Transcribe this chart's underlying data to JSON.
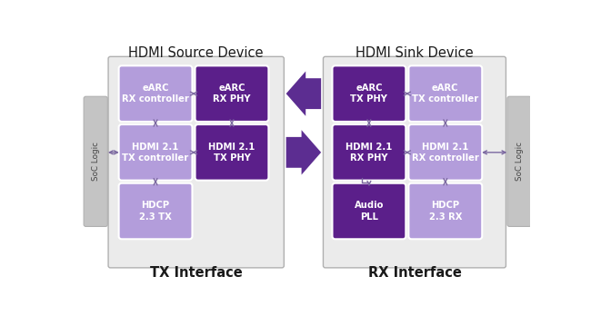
{
  "fig_width": 6.5,
  "fig_height": 3.59,
  "dpi": 100,
  "bg_color": "#ffffff",
  "title_fontsize": 10.5,
  "label_fontsize": 7.2,
  "small_label_fontsize": 6.3,
  "light_purple": "#b39ddb",
  "dark_purple": "#5b1f8a",
  "med_purple": "#7e57c2",
  "arrow_color": "#5c2d91",
  "connector_color": "#7b68a0",
  "gray_bg": "#ebebeb",
  "gray_border": "#b0b0b0",
  "soc_gray": "#c4c4c4",
  "white": "#ffffff",
  "source_title": "HDMI Source Device",
  "sink_title": "HDMI Sink Device",
  "tx_label": "TX Interface",
  "rx_label": "RX Interface",
  "soc_label": "SoC Logic",
  "source_blocks": [
    {
      "label": "eARC\nRX controller",
      "color": "#b39ddb",
      "col": 0,
      "row": 0
    },
    {
      "label": "eARC\nRX PHY",
      "color": "#5b1f8a",
      "col": 1,
      "row": 0
    },
    {
      "label": "HDMI 2.1\nTX controller",
      "color": "#b39ddb",
      "col": 0,
      "row": 1
    },
    {
      "label": "HDMI 2.1\nTX PHY",
      "color": "#5b1f8a",
      "col": 1,
      "row": 1
    },
    {
      "label": "HDCP\n2.3 TX",
      "color": "#b39ddb",
      "col": 0,
      "row": 2
    }
  ],
  "sink_blocks": [
    {
      "label": "eARC\nTX PHY",
      "color": "#5b1f8a",
      "col": 0,
      "row": 0
    },
    {
      "label": "eARC\nTX controller",
      "color": "#b39ddb",
      "col": 1,
      "row": 0
    },
    {
      "label": "HDMI 2.1\nRX PHY",
      "color": "#5b1f8a",
      "col": 0,
      "row": 1
    },
    {
      "label": "HDMI 2.1\nRX controller",
      "color": "#b39ddb",
      "col": 1,
      "row": 1
    },
    {
      "label": "Audio\nPLL",
      "color": "#5b1f8a",
      "col": 0,
      "row": 2
    },
    {
      "label": "HDCP\n2.3 RX",
      "color": "#b39ddb",
      "col": 1,
      "row": 2
    }
  ]
}
